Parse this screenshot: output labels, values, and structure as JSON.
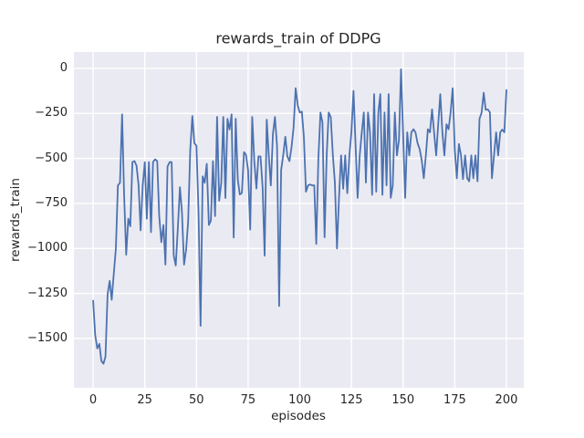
{
  "figure": {
    "title": "rewards_train of DDPG",
    "xlabel": "episodes",
    "ylabel": "rewards_train"
  },
  "chart_data": {
    "type": "line",
    "title": "rewards_train of DDPG",
    "xlabel": "episodes",
    "ylabel": "rewards_train",
    "legend": null,
    "grid": true,
    "style": "seaborn-darkgrid",
    "line_color": "#4c72b0",
    "axes_bg_color": "#eaeaf2",
    "grid_color": "#ffffff",
    "text_color": "#262626",
    "xlim": [
      -9.3,
      208.4
    ],
    "ylim": [
      -1774,
      91
    ],
    "xticks": [
      0,
      25,
      50,
      75,
      100,
      125,
      150,
      175,
      200
    ],
    "xtick_labels": [
      "0",
      "25",
      "50",
      "75",
      "100",
      "125",
      "150",
      "175",
      "200"
    ],
    "yticks": [
      0,
      -250,
      -500,
      -750,
      -1000,
      -1250,
      -1500
    ],
    "ytick_labels": [
      "0",
      "−250",
      "−500",
      "−750",
      "−1000",
      "−1250",
      "−1500"
    ],
    "x_start": 0,
    "x_step": 1,
    "values": [
      -1290,
      -1480,
      -1555,
      -1530,
      -1625,
      -1640,
      -1600,
      -1255,
      -1180,
      -1285,
      -1140,
      -1000,
      -650,
      -635,
      -255,
      -700,
      -1035,
      -835,
      -877,
      -520,
      -515,
      -540,
      -650,
      -900,
      -650,
      -520,
      -835,
      -520,
      -910,
      -520,
      -505,
      -515,
      -820,
      -965,
      -870,
      -1090,
      -545,
      -520,
      -520,
      -1040,
      -1095,
      -885,
      -660,
      -800,
      -1090,
      -1005,
      -850,
      -450,
      -265,
      -415,
      -430,
      -805,
      -1430,
      -600,
      -635,
      -530,
      -870,
      -845,
      -515,
      -820,
      -270,
      -735,
      -635,
      -270,
      -720,
      -280,
      -340,
      -255,
      -940,
      -280,
      -617,
      -700,
      -692,
      -465,
      -480,
      -567,
      -895,
      -270,
      -515,
      -667,
      -489,
      -489,
      -660,
      -1040,
      -285,
      -489,
      -650,
      -363,
      -270,
      -430,
      -1320,
      -565,
      -480,
      -380,
      -489,
      -515,
      -437,
      -330,
      -110,
      -205,
      -245,
      -240,
      -380,
      -685,
      -650,
      -645,
      -650,
      -650,
      -975,
      -500,
      -245,
      -300,
      -938,
      -483,
      -245,
      -271,
      -483,
      -634,
      -1000,
      -719,
      -483,
      -668,
      -483,
      -693,
      -483,
      -355,
      -125,
      -432,
      -719,
      -483,
      -355,
      -245,
      -634,
      -245,
      -355,
      -702,
      -143,
      -685,
      -245,
      -143,
      -702,
      -245,
      -650,
      -143,
      -719,
      -650,
      -245,
      -483,
      -398,
      -5,
      -355,
      -719,
      -355,
      -483,
      -355,
      -338,
      -355,
      -415,
      -448,
      -508,
      -610,
      -483,
      -338,
      -355,
      -228,
      -355,
      -483,
      -313,
      -143,
      -355,
      -483,
      -310,
      -338,
      -245,
      -110,
      -450,
      -610,
      -420,
      -483,
      -615,
      -483,
      -610,
      -627,
      -483,
      -610,
      -483,
      -627,
      -280,
      -245,
      -135,
      -230,
      -228,
      -245,
      -610,
      -483,
      -355,
      -483,
      -355,
      -340,
      -355,
      -120
    ]
  }
}
